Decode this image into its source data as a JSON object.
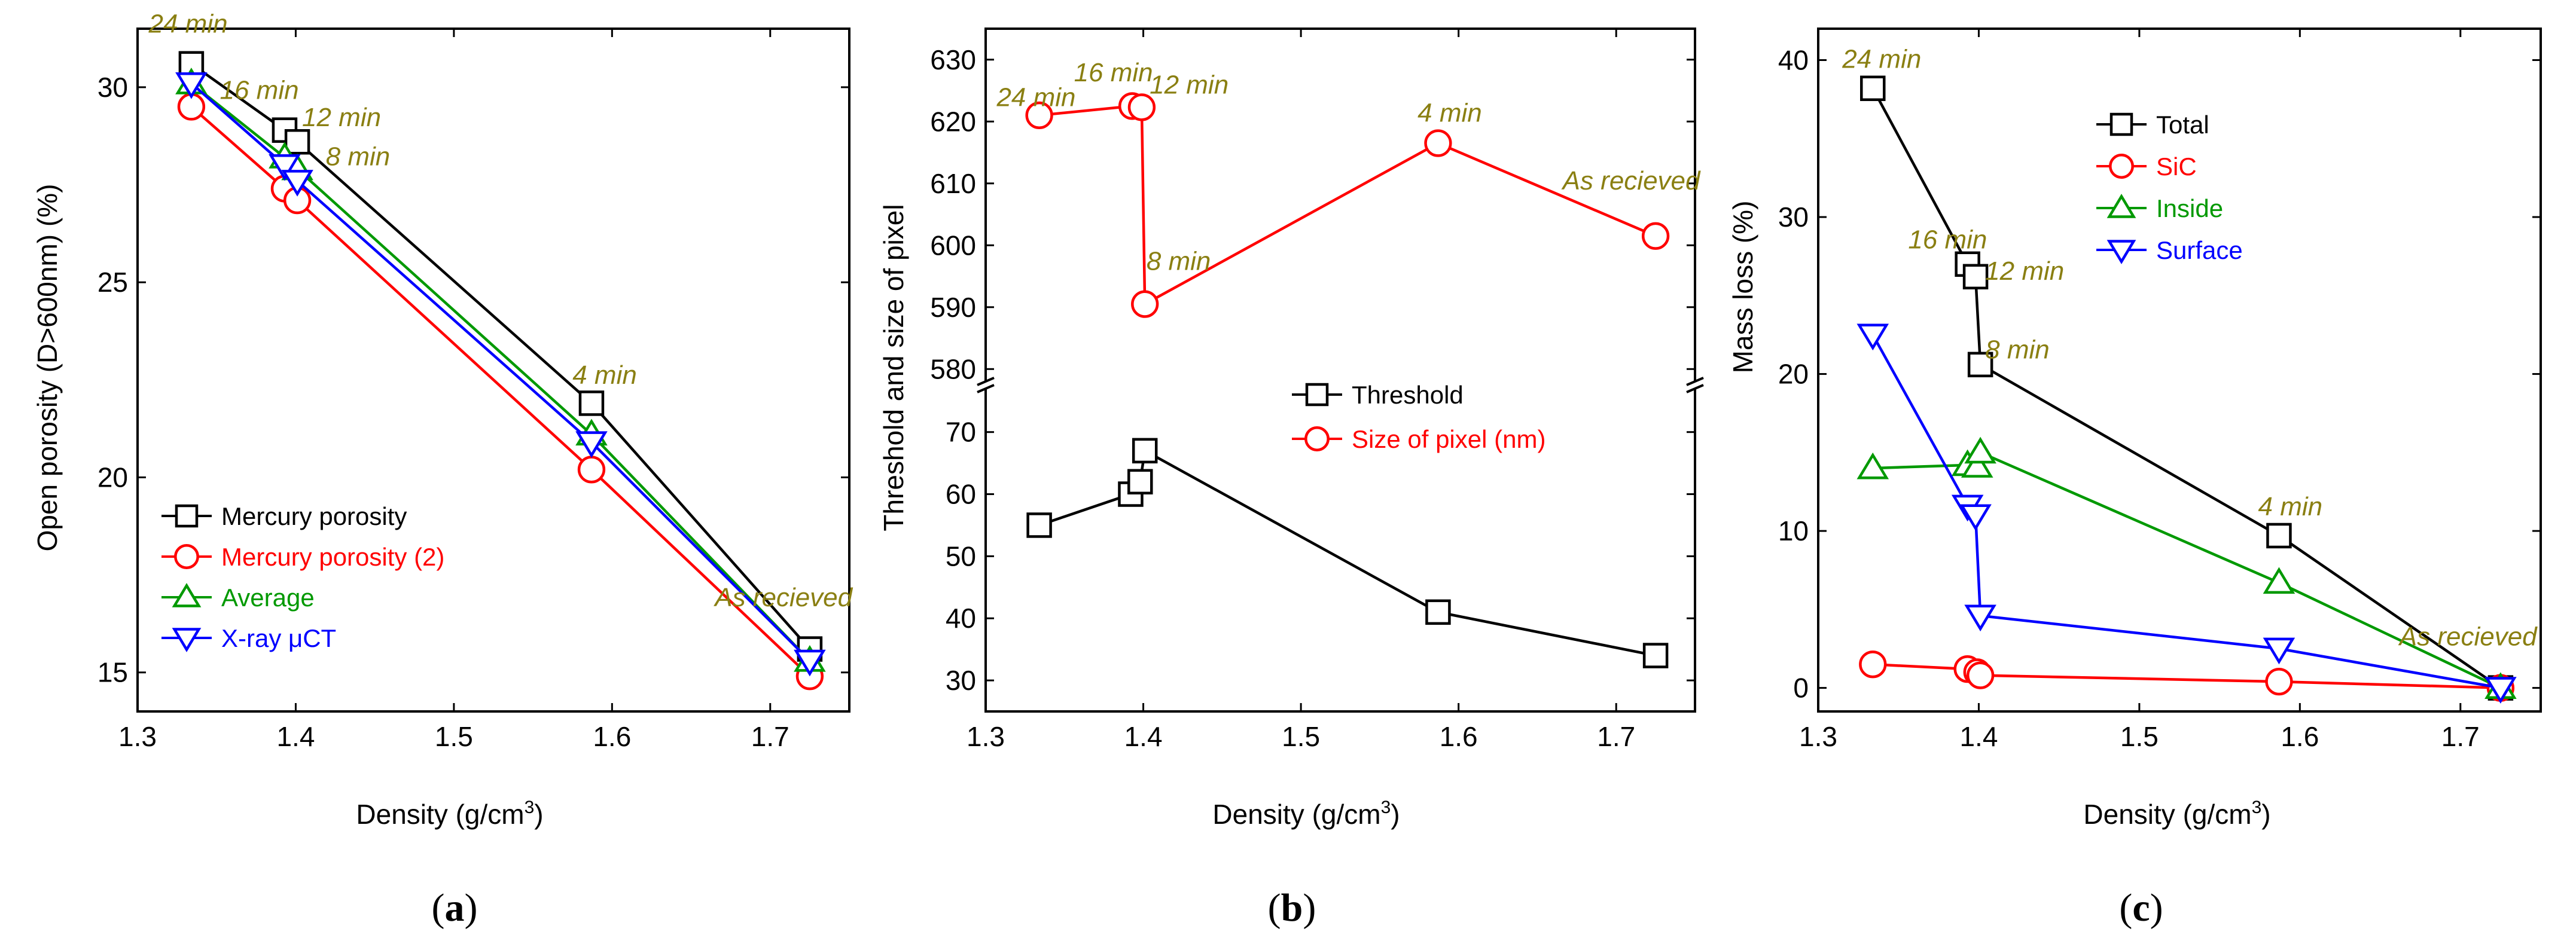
{
  "figure": {
    "panel_labels": [
      "(a)",
      "(b)",
      "(c)"
    ],
    "panel_label_letters": [
      "a",
      "b",
      "c"
    ]
  },
  "chart_data": [
    {
      "id": "a",
      "type": "line",
      "xlabel": "Density (g/cm3)",
      "xlabel_base": "Density (g/cm",
      "xlabel_sup": "3",
      "xlabel_close": ")",
      "ylabel": "Open porosity (D>600nm) (%)",
      "xlim": [
        1.3,
        1.75
      ],
      "ylim": [
        14,
        31.5
      ],
      "xticks": [
        1.3,
        1.4,
        1.5,
        1.6,
        1.7
      ],
      "xtick_labels": [
        "1.3",
        "1.4",
        "1.5",
        "1.6",
        "1.7"
      ],
      "yticks": [
        15,
        20,
        25,
        30
      ],
      "ytick_labels": [
        "15",
        "20",
        "25",
        "30"
      ],
      "legend_position": "bottom-left",
      "series": [
        {
          "name": "Mercury porosity",
          "color": "#000000",
          "marker": "square",
          "x": [
            1.334,
            1.393,
            1.401,
            1.587,
            1.725
          ],
          "y": [
            30.6,
            28.9,
            28.6,
            21.9,
            15.6
          ]
        },
        {
          "name": "Mercury porosity (2)",
          "color": "#ff0000",
          "marker": "circle",
          "x": [
            1.334,
            1.393,
            1.401,
            1.587,
            1.725
          ],
          "y": [
            29.5,
            27.4,
            27.1,
            20.2,
            14.9
          ]
        },
        {
          "name": "Average",
          "color": "#009900",
          "marker": "triangle-up",
          "x": [
            1.334,
            1.393,
            1.401,
            1.587,
            1.725
          ],
          "y": [
            30.1,
            28.2,
            27.9,
            21.1,
            15.3
          ]
        },
        {
          "name": "X-ray μCT",
          "color": "#0000ff",
          "marker": "triangle-down",
          "x": [
            1.334,
            1.393,
            1.401,
            1.587,
            1.725
          ],
          "y": [
            30.1,
            28.0,
            27.6,
            20.9,
            15.3
          ]
        }
      ],
      "annotations": [
        {
          "text": "24 min",
          "x": 1.307,
          "y": 31.4
        },
        {
          "text": "16 min",
          "x": 1.352,
          "y": 29.7
        },
        {
          "text": "12 min",
          "x": 1.404,
          "y": 29.0
        },
        {
          "text": "8 min",
          "x": 1.419,
          "y": 28.0
        },
        {
          "text": "4 min",
          "x": 1.575,
          "y": 22.4
        },
        {
          "text": "As recieved",
          "x": 1.665,
          "y": 16.7
        }
      ]
    },
    {
      "id": "b",
      "type": "line",
      "xlabel": "Density (g/cm3)",
      "xlabel_base": "Density (g/cm",
      "xlabel_sup": "3",
      "xlabel_close": ")",
      "ylabel": "Threshold and size of pixel",
      "xlim": [
        1.3,
        1.75
      ],
      "ylim_lower": [
        25,
        77
      ],
      "ylim_upper": [
        578,
        635
      ],
      "axis_break": true,
      "xticks": [
        1.3,
        1.4,
        1.5,
        1.6,
        1.7
      ],
      "xtick_labels": [
        "1.3",
        "1.4",
        "1.5",
        "1.6",
        "1.7"
      ],
      "yticks_lower": [
        30,
        40,
        50,
        60,
        70
      ],
      "ytick_labels_lower": [
        "30",
        "40",
        "50",
        "60",
        "70"
      ],
      "yticks_upper": [
        580,
        590,
        600,
        610,
        620,
        630
      ],
      "ytick_labels_upper": [
        "580",
        "590",
        "600",
        "610",
        "620",
        "630"
      ],
      "legend_position": "middle-right",
      "series": [
        {
          "name": "Threshold",
          "color": "#000000",
          "marker": "square",
          "axis": "lower",
          "x": [
            1.334,
            1.392,
            1.398,
            1.401,
            1.587,
            1.725
          ],
          "y": [
            55,
            60,
            62,
            67,
            41,
            34
          ]
        },
        {
          "name": "Size of pixel (nm)",
          "color": "#ff0000",
          "marker": "circle",
          "axis": "upper",
          "x": [
            1.334,
            1.393,
            1.399,
            1.401,
            1.587,
            1.725
          ],
          "y": [
            621,
            622.5,
            622.3,
            590.5,
            616.5,
            601.5
          ]
        }
      ],
      "annotations": [
        {
          "text": "24 min",
          "x": 1.307,
          "y": 622.5,
          "axis": "upper"
        },
        {
          "text": "16 min",
          "x": 1.356,
          "y": 626.5,
          "axis": "upper"
        },
        {
          "text": "12 min",
          "x": 1.404,
          "y": 624.5,
          "axis": "upper"
        },
        {
          "text": "8 min",
          "x": 1.402,
          "y": 596,
          "axis": "upper"
        },
        {
          "text": "4 min",
          "x": 1.574,
          "y": 620,
          "axis": "upper"
        },
        {
          "text": "As recieved",
          "x": 1.666,
          "y": 609,
          "axis": "upper"
        }
      ]
    },
    {
      "id": "c",
      "type": "line",
      "xlabel": "Density (g/cm3)",
      "xlabel_base": "Density (g/cm",
      "xlabel_sup": "3",
      "xlabel_close": ")",
      "ylabel": "Mass loss (%)",
      "xlim": [
        1.3,
        1.75
      ],
      "ylim": [
        -1.5,
        42
      ],
      "xticks": [
        1.3,
        1.4,
        1.5,
        1.6,
        1.7
      ],
      "xtick_labels": [
        "1.3",
        "1.4",
        "1.5",
        "1.6",
        "1.7"
      ],
      "yticks": [
        0,
        10,
        20,
        30,
        40
      ],
      "ytick_labels": [
        "0",
        "10",
        "20",
        "30",
        "40"
      ],
      "legend_position": "top-right",
      "series": [
        {
          "name": "Total",
          "color": "#000000",
          "marker": "square",
          "x": [
            1.334,
            1.393,
            1.398,
            1.401,
            1.587,
            1.725
          ],
          "y": [
            38.2,
            27.0,
            26.2,
            20.6,
            9.7,
            0
          ]
        },
        {
          "name": "SiC",
          "color": "#ff0000",
          "marker": "circle",
          "x": [
            1.334,
            1.393,
            1.399,
            1.401,
            1.587,
            1.725
          ],
          "y": [
            1.5,
            1.2,
            1.0,
            0.8,
            0.4,
            0
          ]
        },
        {
          "name": "Inside",
          "color": "#009900",
          "marker": "triangle-up",
          "x": [
            1.334,
            1.393,
            1.399,
            1.401,
            1.587,
            1.725
          ],
          "y": [
            14.0,
            14.2,
            14.1,
            15.0,
            6.7,
            0
          ]
        },
        {
          "name": "Surface",
          "color": "#0000ff",
          "marker": "triangle-down",
          "x": [
            1.334,
            1.393,
            1.398,
            1.401,
            1.587,
            1.725
          ],
          "y": [
            22.5,
            11.6,
            11.0,
            4.6,
            2.5,
            0
          ]
        }
      ],
      "annotations": [
        {
          "text": "24 min",
          "x": 1.315,
          "y": 39.5
        },
        {
          "text": "16 min",
          "x": 1.356,
          "y": 28.0
        },
        {
          "text": "12 min",
          "x": 1.404,
          "y": 26.0
        },
        {
          "text": "8 min",
          "x": 1.404,
          "y": 21.0
        },
        {
          "text": "4 min",
          "x": 1.574,
          "y": 11.0
        },
        {
          "text": "As recieved",
          "x": 1.662,
          "y": 2.7
        }
      ]
    }
  ]
}
